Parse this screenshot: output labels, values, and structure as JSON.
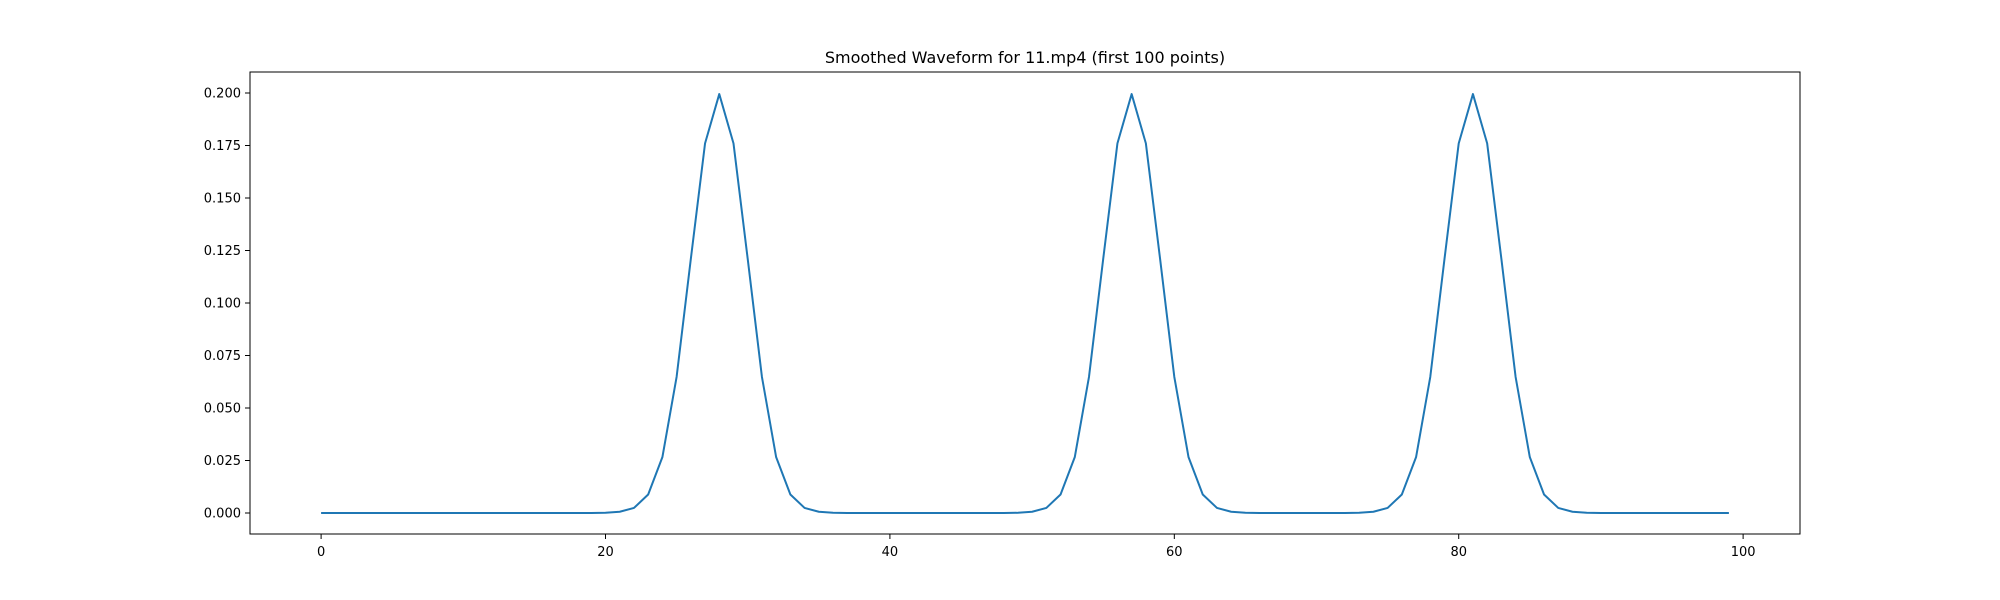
{
  "chart_data": {
    "type": "line",
    "title": "Smoothed Waveform for 11.mp4 (first 100 points)",
    "xlabel": "",
    "ylabel": "",
    "xlim": [
      -5,
      104
    ],
    "ylim": [
      -0.01,
      0.21
    ],
    "grid": false,
    "line_color": "#1f77b4",
    "x_ticks": [
      0,
      20,
      40,
      60,
      80,
      100
    ],
    "x_tick_labels": [
      "0",
      "20",
      "40",
      "60",
      "80",
      "100"
    ],
    "y_ticks": [
      0.0,
      0.025,
      0.05,
      0.075,
      0.1,
      0.125,
      0.15,
      0.175,
      0.2
    ],
    "y_tick_labels": [
      "0.000",
      "0.025",
      "0.050",
      "0.075",
      "0.100",
      "0.125",
      "0.150",
      "0.175",
      "0.200"
    ],
    "series": [
      {
        "x": [
          0,
          1,
          2,
          3,
          4,
          5,
          6,
          7,
          8,
          9,
          10,
          11,
          12,
          13,
          14,
          15,
          16,
          17,
          18,
          19,
          20,
          21,
          22,
          23,
          24,
          25,
          26,
          27,
          28,
          29,
          30,
          31,
          32,
          33,
          34,
          35,
          36,
          37,
          38,
          39,
          40,
          41,
          42,
          43,
          44,
          45,
          46,
          47,
          48,
          49,
          50,
          51,
          52,
          53,
          54,
          55,
          56,
          57,
          58,
          59,
          60,
          61,
          62,
          63,
          64,
          65,
          66,
          67,
          68,
          69,
          70,
          71,
          72,
          73,
          74,
          75,
          76,
          77,
          78,
          79,
          80,
          81,
          82,
          83,
          84,
          85,
          86,
          87,
          88,
          89,
          90,
          91,
          92,
          93,
          94,
          95,
          96,
          97,
          98,
          99
        ],
        "y": [
          0,
          0,
          0,
          0,
          0,
          0,
          0,
          0,
          0,
          0,
          0,
          0,
          0,
          0,
          0,
          0,
          0,
          0,
          0,
          0,
          0.0001,
          0.0006,
          0.0024,
          0.0088,
          0.0266,
          0.0648,
          0.121,
          0.176,
          0.1995,
          0.176,
          0.121,
          0.0648,
          0.0266,
          0.0088,
          0.0024,
          0.0006,
          0.0001,
          0,
          0,
          0,
          0,
          0,
          0,
          0,
          0,
          0,
          0,
          0,
          0,
          0.0001,
          0.0006,
          0.0024,
          0.0088,
          0.0266,
          0.0648,
          0.121,
          0.176,
          0.1995,
          0.176,
          0.121,
          0.0648,
          0.0266,
          0.0088,
          0.0024,
          0.0006,
          0.0001,
          0,
          0,
          0,
          0,
          0,
          0,
          0,
          0.0001,
          0.0006,
          0.0024,
          0.0088,
          0.0266,
          0.0648,
          0.121,
          0.176,
          0.1995,
          0.176,
          0.121,
          0.0648,
          0.0266,
          0.0088,
          0.0024,
          0.0006,
          0.0001,
          0,
          0,
          0,
          0,
          0,
          0,
          0,
          0,
          0,
          0
        ]
      }
    ]
  }
}
